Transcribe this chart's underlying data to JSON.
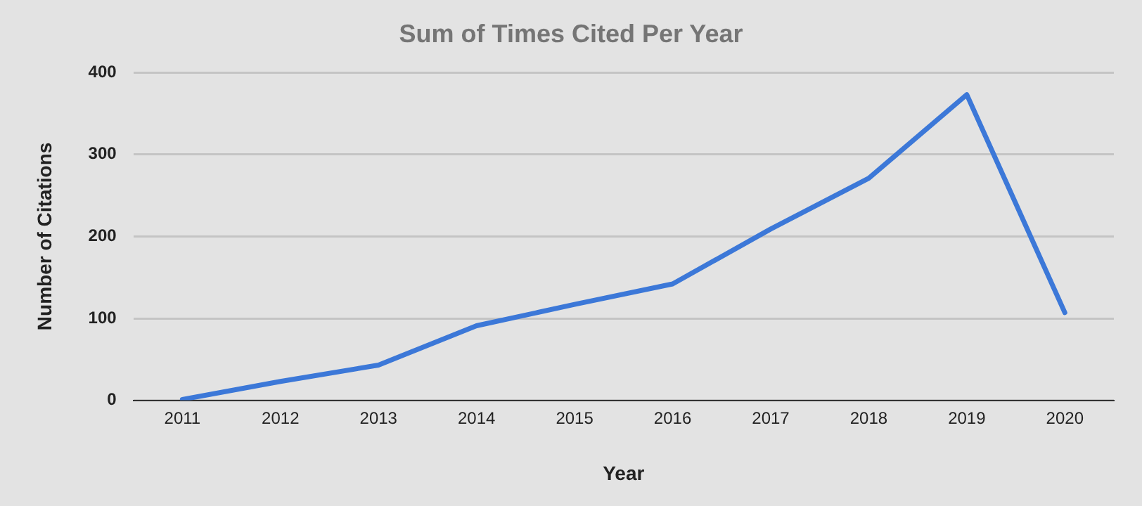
{
  "chart_data": {
    "type": "line",
    "title": "Sum of Times Cited Per Year",
    "xlabel": "Year",
    "ylabel": "Number of Citations",
    "categories": [
      "2011",
      "2012",
      "2013",
      "2014",
      "2015",
      "2016",
      "2017",
      "2018",
      "2019",
      "2020"
    ],
    "series": [
      {
        "color": "#3c78d8",
        "values": [
          1,
          23,
          43,
          91,
          117,
          142,
          209,
          271,
          373,
          107
        ]
      }
    ],
    "ylim": [
      0,
      400
    ],
    "yticks": [
      0,
      100,
      200,
      300,
      400
    ],
    "grid": "y",
    "legend": false,
    "marker": "none",
    "line_style": "solid"
  }
}
